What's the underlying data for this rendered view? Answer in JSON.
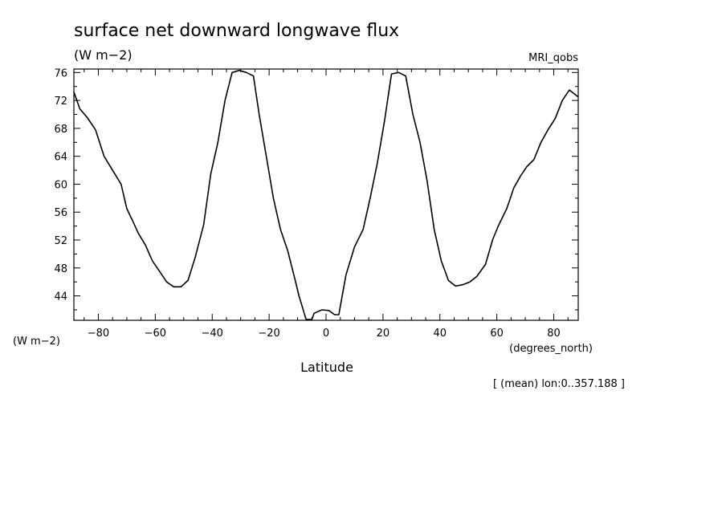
{
  "chart_data": {
    "type": "line",
    "title": "surface net downward longwave flux",
    "units_label": "(W m−2)",
    "dataset_label": "MRI_qobs",
    "y_axis_unit_label": "(W m−2)",
    "x_axis_unit_label": "(degrees_north)",
    "xlabel": "Latitude",
    "footnote": "[ (mean) lon:0..357.188 ]",
    "xlim": [
      -88.6,
      88.6
    ],
    "ylim": [
      40.5,
      76.5
    ],
    "x_ticks": [
      -80,
      -60,
      -40,
      -20,
      0,
      20,
      40,
      60,
      80
    ],
    "x_tick_labels": [
      "−80",
      "−60",
      "−40",
      "−20",
      "0",
      "20",
      "40",
      "60",
      "80"
    ],
    "y_ticks": [
      44,
      48,
      52,
      56,
      60,
      64,
      68,
      72,
      76
    ],
    "y_tick_labels": [
      "44",
      "48",
      "52",
      "56",
      "60",
      "64",
      "68",
      "72",
      "76"
    ],
    "grid": false,
    "series": [
      {
        "x": [
          -88.6,
          -86.5,
          -84.0,
          -81.0,
          -78.0,
          -75.0,
          -72.0,
          -70.0,
          -68.0,
          -66.0,
          -63.5,
          -61.0,
          -58.5,
          -56.0,
          -53.5,
          -51.0,
          -48.5,
          -46.0,
          -43.0,
          -40.5,
          -38.0,
          -35.5,
          -33.0,
          -30.5,
          -28.0,
          -25.5,
          -23.5,
          -21.0,
          -18.5,
          -16.0,
          -13.5,
          -11.0,
          -9.5,
          -7.0,
          -5.0,
          -4.2,
          -1.5,
          1.0,
          3.0,
          4.5,
          7.0,
          10.0,
          13.0,
          15.5,
          18.0,
          20.5,
          23.0,
          25.5,
          28.0,
          30.5,
          33.0,
          35.5,
          38.0,
          40.5,
          43.0,
          45.5,
          48.0,
          50.5,
          53.0,
          56.0,
          58.5,
          60.5,
          63.5,
          66.0,
          68.5,
          70.5,
          73.0,
          75.5,
          78.0,
          80.5,
          83.0,
          85.5,
          88.6
        ],
        "y": [
          73.2,
          70.8,
          69.6,
          67.8,
          64.0,
          62.0,
          60.0,
          56.5,
          54.8,
          53.0,
          51.3,
          49.0,
          47.5,
          46.0,
          45.3,
          45.3,
          46.2,
          49.5,
          54.2,
          61.5,
          66.0,
          72.0,
          76.0,
          76.3,
          76.0,
          75.5,
          70.0,
          64.0,
          58.0,
          53.5,
          50.5,
          46.5,
          44.0,
          40.6,
          40.6,
          41.5,
          42.0,
          41.9,
          41.3,
          41.3,
          47.0,
          51.0,
          53.5,
          58.0,
          63.0,
          69.0,
          75.8,
          76.0,
          75.5,
          70.0,
          66.0,
          60.5,
          53.5,
          49.0,
          46.2,
          45.4,
          45.6,
          46.0,
          46.8,
          48.5,
          52.0,
          54.0,
          56.5,
          59.5,
          61.3,
          62.5,
          63.5,
          66.0,
          67.8,
          69.4,
          72.0,
          73.5,
          72.5
        ],
        "color": "#000000"
      }
    ]
  }
}
